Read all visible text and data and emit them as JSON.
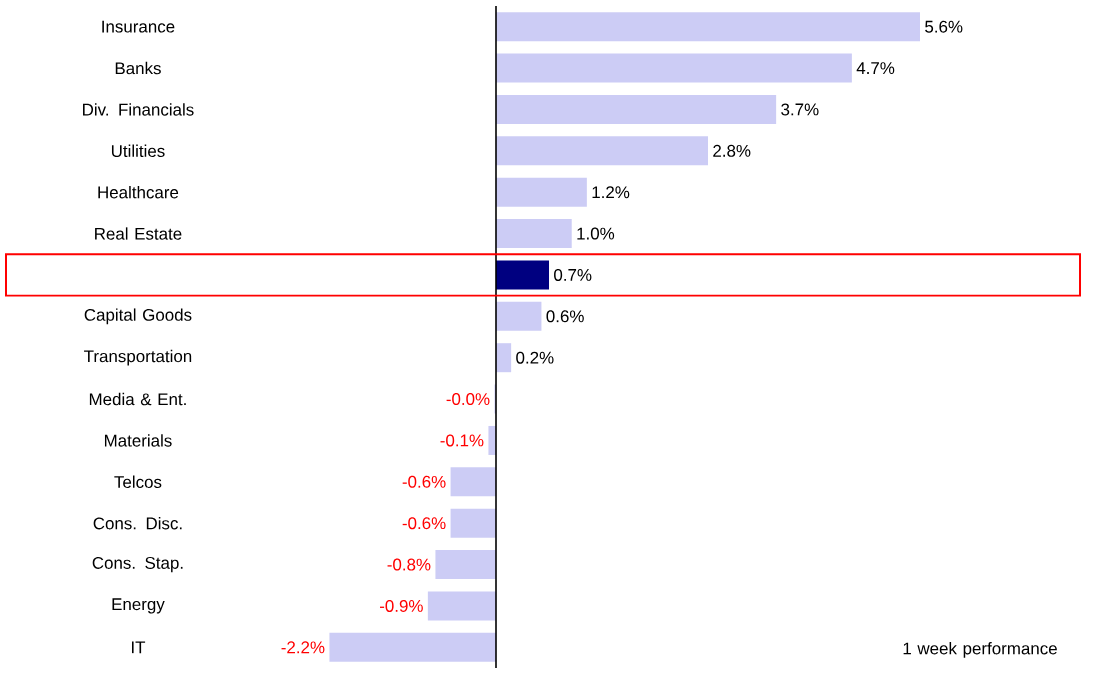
{
  "chart_data": {
    "type": "bar",
    "orientation": "horizontal",
    "categories": [
      "Insurance",
      "Banks",
      "Div. Financials",
      "Utilities",
      "Healthcare",
      "Real Estate",
      null,
      "Capital Goods",
      "Transportation",
      "Media & Ent.",
      "Materials",
      "Telcos",
      "Cons. Disc.",
      "Cons. Stap.",
      "Energy",
      "IT"
    ],
    "values": [
      5.6,
      4.7,
      3.7,
      2.8,
      1.2,
      1.0,
      0.7,
      0.6,
      0.2,
      -0.02,
      -0.1,
      -0.6,
      -0.6,
      -0.8,
      -0.9,
      -2.2
    ],
    "value_labels": [
      "5.6%",
      "4.7%",
      "3.7%",
      "2.8%",
      "1.2%",
      "1.0%",
      "0.7%",
      "0.6%",
      "0.2%",
      "-0.0%",
      "-0.1%",
      "-0.6%",
      "-0.6%",
      "-0.8%",
      "-0.9%",
      "-2.2%"
    ],
    "colors": [
      "#ccccf5",
      "#ccccf5",
      "#ccccf5",
      "#ccccf5",
      "#ccccf5",
      "#ccccf5",
      "#000080",
      "#ccccf5",
      "#ccccf5",
      "#ccccf5",
      "#ccccf5",
      "#ccccf5",
      "#ccccf5",
      "#ccccf5",
      "#ccccf5",
      "#ccccf5"
    ],
    "annotations": [
      "1 week performance"
    ]
  }
}
